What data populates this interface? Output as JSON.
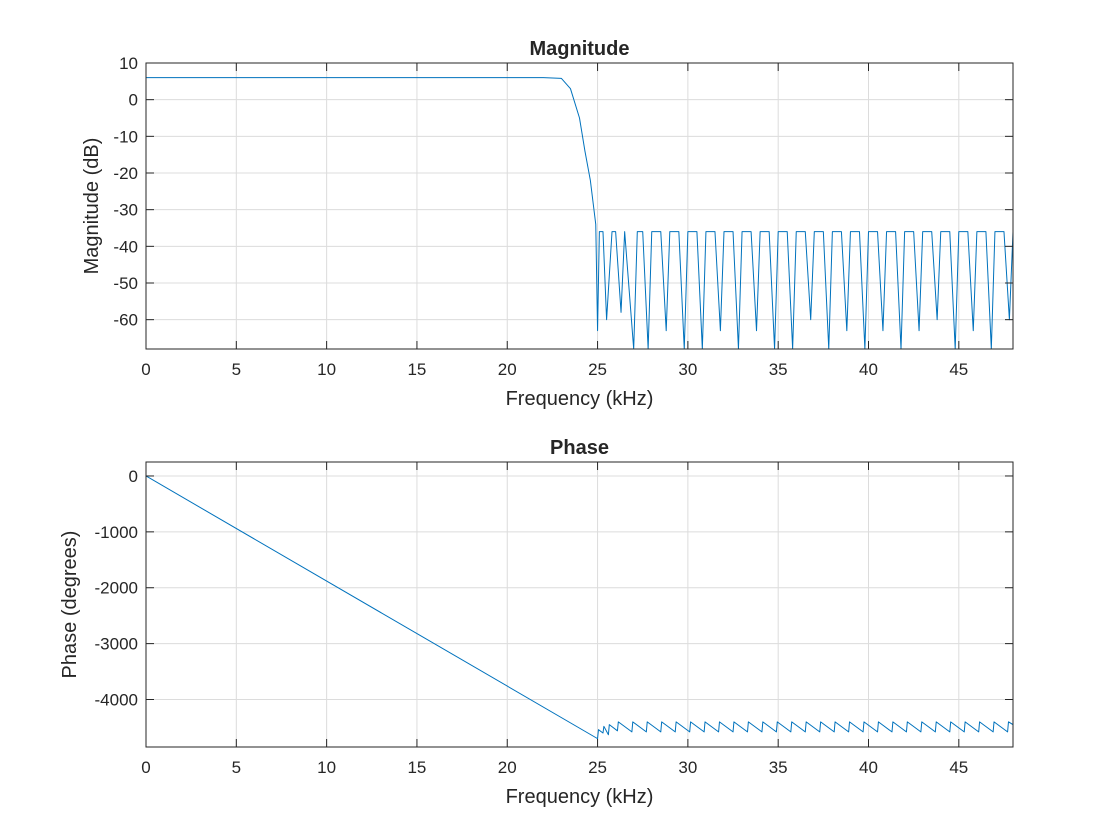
{
  "chart_data": [
    {
      "type": "line",
      "title": "Magnitude",
      "xlabel": "Frequency (kHz)",
      "ylabel": "Magnitude (dB)",
      "xlim": [
        0,
        48
      ],
      "ylim": [
        -68,
        10
      ],
      "xticks": [
        0,
        5,
        10,
        15,
        20,
        25,
        30,
        35,
        40,
        45
      ],
      "yticks": [
        10,
        0,
        -10,
        -20,
        -30,
        -40,
        -50,
        -60
      ],
      "grid": true,
      "series": [
        {
          "color": "#0072bd",
          "x": [
            0,
            2,
            4,
            6,
            8,
            10,
            12,
            14,
            16,
            18,
            20,
            22,
            23,
            23.5,
            24,
            24.3,
            24.6,
            24.8,
            24.9,
            25.0,
            25.1,
            25.3,
            25.5,
            25.8,
            26.0,
            26.3,
            26.5,
            27.0,
            27.2,
            27.5,
            27.8,
            28.0,
            28.2,
            28.5,
            28.8,
            29.0,
            29.2,
            29.5,
            29.8,
            30.0,
            30.2,
            30.5,
            30.8,
            31.0,
            31.2,
            31.5,
            31.8,
            32.0,
            32.2,
            32.5,
            32.8,
            33.0,
            33.2,
            33.5,
            33.8,
            34.0,
            34.2,
            34.5,
            34.8,
            35.0,
            35.2,
            35.5,
            35.8,
            36.0,
            36.2,
            36.5,
            36.8,
            37.0,
            37.2,
            37.5,
            37.8,
            38.0,
            38.2,
            38.5,
            38.8,
            39.0,
            39.2,
            39.5,
            39.8,
            40.0,
            40.2,
            40.5,
            40.8,
            41.0,
            41.2,
            41.5,
            41.8,
            42.0,
            42.2,
            42.5,
            42.8,
            43.0,
            43.2,
            43.5,
            43.8,
            44.0,
            44.2,
            44.5,
            44.8,
            45.0,
            45.2,
            45.5,
            45.8,
            46.0,
            46.2,
            46.5,
            46.8,
            47.0,
            47.2,
            47.5,
            47.8,
            48.0
          ],
          "y": [
            6,
            6,
            6,
            6,
            6,
            6,
            6,
            6,
            6,
            6,
            6,
            6,
            5.8,
            3,
            -5,
            -14,
            -22,
            -30,
            -34,
            -63,
            -36,
            -36,
            -60,
            -36,
            -36,
            -58,
            -36,
            -68,
            -36,
            -36,
            -68,
            -36,
            -36,
            -36,
            -63,
            -36,
            -36,
            -36,
            -68,
            -36,
            -36,
            -36,
            -68,
            -36,
            -36,
            -36,
            -63,
            -36,
            -36,
            -36,
            -68,
            -36,
            -36,
            -36,
            -63,
            -36,
            -36,
            -36,
            -68,
            -36,
            -36,
            -36,
            -68,
            -36,
            -36,
            -36,
            -60,
            -36,
            -36,
            -36,
            -68,
            -36,
            -36,
            -36,
            -63,
            -36,
            -36,
            -36,
            -68,
            -36,
            -36,
            -36,
            -63,
            -36,
            -36,
            -36,
            -68,
            -36,
            -36,
            -36,
            -63,
            -36,
            -36,
            -36,
            -60,
            -36,
            -36,
            -36,
            -68,
            -36,
            -36,
            -36,
            -63,
            -36,
            -36,
            -36,
            -68,
            -36,
            -36,
            -36,
            -60,
            -36
          ]
        }
      ]
    },
    {
      "type": "line",
      "title": "Phase",
      "xlabel": "Frequency (kHz)",
      "ylabel": "Phase (degrees)",
      "xlim": [
        0,
        48
      ],
      "ylim": [
        -4850,
        250
      ],
      "xticks": [
        0,
        5,
        10,
        15,
        20,
        25,
        30,
        35,
        40,
        45
      ],
      "yticks": [
        0,
        -1000,
        -2000,
        -3000,
        -4000
      ],
      "grid": true,
      "series": [
        {
          "color": "#0072bd",
          "x": [
            0,
            25.0,
            25.05,
            25.3,
            25.35,
            25.6,
            25.65,
            26.1,
            26.15,
            26.9,
            26.95,
            27.7,
            27.75,
            28.5,
            28.55,
            29.3,
            29.35,
            30.1,
            30.15,
            30.9,
            30.95,
            31.7,
            31.75,
            32.5,
            32.55,
            33.3,
            33.35,
            34.1,
            34.15,
            34.9,
            34.95,
            35.7,
            35.75,
            36.5,
            36.55,
            37.3,
            37.35,
            38.1,
            38.15,
            38.9,
            38.95,
            39.7,
            39.75,
            40.5,
            40.55,
            41.3,
            41.35,
            42.1,
            42.15,
            42.9,
            42.95,
            43.7,
            43.75,
            44.5,
            44.55,
            45.3,
            45.35,
            46.1,
            46.15,
            46.9,
            46.95,
            47.7,
            47.75,
            48.0
          ],
          "y": [
            0,
            -4700,
            -4540,
            -4600,
            -4480,
            -4630,
            -4450,
            -4560,
            -4400,
            -4580,
            -4400,
            -4580,
            -4400,
            -4580,
            -4400,
            -4580,
            -4400,
            -4580,
            -4400,
            -4580,
            -4400,
            -4580,
            -4400,
            -4580,
            -4400,
            -4580,
            -4400,
            -4580,
            -4400,
            -4580,
            -4400,
            -4580,
            -4400,
            -4580,
            -4400,
            -4580,
            -4400,
            -4580,
            -4400,
            -4580,
            -4400,
            -4580,
            -4400,
            -4580,
            -4400,
            -4580,
            -4400,
            -4580,
            -4400,
            -4580,
            -4400,
            -4580,
            -4400,
            -4580,
            -4400,
            -4580,
            -4400,
            -4580,
            -4400,
            -4580,
            -4400,
            -4580,
            -4400,
            -4450
          ]
        }
      ]
    }
  ]
}
